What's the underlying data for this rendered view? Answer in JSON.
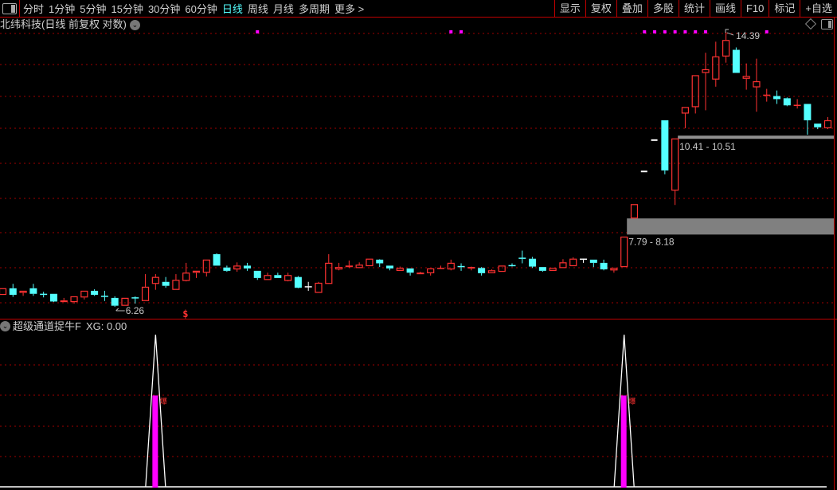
{
  "toolbar": {
    "periods": [
      {
        "label": "分时"
      },
      {
        "label": "1分钟"
      },
      {
        "label": "5分钟"
      },
      {
        "label": "15分钟"
      },
      {
        "label": "30分钟"
      },
      {
        "label": "60分钟"
      },
      {
        "label": "日线",
        "active": true
      },
      {
        "label": "周线"
      },
      {
        "label": "月线"
      },
      {
        "label": "多周期"
      },
      {
        "label": "更多 >"
      }
    ],
    "right_buttons": [
      "显示",
      "复权",
      "叠加",
      "多股",
      "统计",
      "画线",
      "F10",
      "标记",
      "+自选"
    ]
  },
  "main_panel": {
    "title": "北纬科技(日线 前复权 对数)"
  },
  "indicator_panel": {
    "name": "超级通道捉牛F",
    "readout": "XG: 0.00"
  },
  "colors": {
    "up": "#ff3232",
    "down": "#54ffff",
    "flat": "#ffffff",
    "signal": "#ff00ff",
    "grid": "#a00000",
    "zone": "#808080"
  },
  "chart_data": {
    "type": "candlestick",
    "scale": "log",
    "grid": true,
    "candles": [
      [
        6.49,
        6.62,
        6.49,
        6.62
      ],
      [
        6.62,
        6.71,
        6.45,
        6.49
      ],
      [
        6.53,
        6.57,
        6.47,
        6.57
      ],
      [
        6.62,
        6.71,
        6.47,
        6.51
      ],
      [
        6.5,
        6.55,
        6.44,
        6.49
      ],
      [
        6.51,
        6.51,
        6.35,
        6.36
      ],
      [
        6.35,
        6.43,
        6.35,
        6.38
      ],
      [
        6.35,
        6.46,
        6.32,
        6.46
      ],
      [
        6.44,
        6.57,
        6.4,
        6.57
      ],
      [
        6.57,
        6.6,
        6.47,
        6.49
      ],
      [
        6.46,
        6.57,
        6.37,
        6.45
      ],
      [
        6.43,
        6.46,
        6.26,
        6.28
      ],
      [
        6.28,
        6.43,
        6.28,
        6.43
      ],
      [
        6.43,
        6.46,
        6.32,
        6.42
      ],
      [
        6.37,
        6.91,
        6.37,
        6.65
      ],
      [
        6.71,
        6.91,
        6.59,
        6.85
      ],
      [
        6.75,
        6.85,
        6.63,
        6.67
      ],
      [
        6.59,
        6.91,
        6.59,
        6.79
      ],
      [
        6.77,
        7.15,
        6.76,
        6.94
      ],
      [
        6.94,
        6.98,
        6.83,
        6.98
      ],
      [
        6.94,
        7.22,
        6.86,
        7.22
      ],
      [
        7.34,
        7.36,
        7.09,
        7.09
      ],
      [
        7.05,
        7.09,
        6.96,
        6.98
      ],
      [
        7.01,
        7.16,
        6.96,
        7.09
      ],
      [
        7.09,
        7.15,
        6.98,
        7.03
      ],
      [
        6.98,
        6.98,
        6.79,
        6.83
      ],
      [
        6.79,
        6.94,
        6.79,
        6.89
      ],
      [
        6.89,
        6.94,
        6.83,
        6.83
      ],
      [
        6.77,
        6.94,
        6.76,
        6.89
      ],
      [
        6.85,
        6.87,
        6.62,
        6.63
      ],
      [
        6.65,
        6.75,
        6.57,
        6.65
      ],
      [
        6.53,
        6.75,
        6.53,
        6.73
      ],
      [
        6.71,
        7.34,
        6.71,
        7.15
      ],
      [
        7.01,
        7.15,
        6.99,
        7.06
      ],
      [
        7.06,
        7.2,
        7.04,
        7.09
      ],
      [
        7.04,
        7.16,
        7.04,
        7.11
      ],
      [
        7.08,
        7.24,
        7.08,
        7.24
      ],
      [
        7.22,
        7.23,
        7.06,
        7.14
      ],
      [
        7.09,
        7.09,
        6.99,
        7.03
      ],
      [
        6.98,
        7.07,
        6.98,
        7.04
      ],
      [
        7.03,
        7.03,
        6.88,
        6.94
      ],
      [
        6.91,
        6.96,
        6.91,
        6.94
      ],
      [
        6.93,
        7.03,
        6.88,
        7.03
      ],
      [
        7.02,
        7.09,
        7.02,
        7.03
      ],
      [
        7.01,
        7.22,
        6.99,
        7.15
      ],
      [
        7.07,
        7.14,
        6.98,
        7.06
      ],
      [
        7.03,
        7.07,
        6.99,
        7.06
      ],
      [
        7.04,
        7.06,
        6.88,
        6.93
      ],
      [
        6.93,
        7.01,
        6.93,
        6.99
      ],
      [
        6.96,
        7.09,
        6.96,
        7.09
      ],
      [
        7.09,
        7.14,
        7.06,
        7.07
      ],
      [
        7.25,
        7.42,
        7.14,
        7.24
      ],
      [
        7.24,
        7.28,
        7.04,
        7.07
      ],
      [
        7.06,
        7.06,
        6.96,
        6.98
      ],
      [
        6.98,
        7.04,
        6.98,
        7.04
      ],
      [
        7.04,
        7.23,
        7.04,
        7.16
      ],
      [
        7.08,
        7.27,
        7.08,
        7.24
      ],
      [
        7.23,
        7.24,
        7.15,
        7.23
      ],
      [
        7.22,
        7.22,
        7.06,
        7.15
      ],
      [
        7.15,
        7.22,
        6.99,
        7.01
      ],
      [
        6.99,
        7.04,
        6.94,
        7.04
      ],
      [
        7.06,
        7.74,
        7.06,
        7.74
      ],
      [
        8.18,
        8.54,
        8.18,
        8.54
      ],
      [
        9.43,
        9.43,
        9.43,
        9.43
      ],
      [
        10.37,
        10.37,
        10.37,
        10.37
      ],
      [
        11.01,
        11.01,
        9.35,
        9.46
      ],
      [
        8.9,
        10.42,
        8.52,
        10.42
      ],
      [
        11.24,
        11.46,
        10.75,
        11.46
      ],
      [
        11.46,
        12.62,
        11.24,
        12.62
      ],
      [
        12.71,
        13.51,
        11.35,
        12.85
      ],
      [
        12.46,
        13.97,
        12.19,
        13.36
      ],
      [
        13.36,
        14.39,
        13.11,
        14.04
      ],
      [
        13.63,
        13.73,
        12.71,
        12.71
      ],
      [
        12.49,
        13.08,
        12.08,
        12.59
      ],
      [
        12.17,
        13.27,
        11.3,
        12.39
      ],
      [
        11.85,
        12.11,
        11.65,
        11.88
      ],
      [
        11.85,
        12.05,
        11.57,
        11.74
      ],
      [
        11.77,
        11.8,
        11.49,
        11.52
      ],
      [
        11.51,
        11.74,
        11.41,
        11.52
      ],
      [
        11.57,
        11.57,
        10.54,
        11.01
      ],
      [
        10.9,
        10.9,
        10.72,
        10.78
      ],
      [
        10.75,
        11.12,
        10.72,
        11.01
      ]
    ],
    "candle_format": [
      "open",
      "high",
      "low",
      "close"
    ],
    "high_label": "14.39",
    "low_label": "6.26",
    "high_index": 71,
    "low_index": 11,
    "zones": [
      {
        "label": "7.79 - 8.18",
        "low": 7.79,
        "high": 8.18,
        "start_index": 61,
        "type": "band"
      },
      {
        "label": "10.41 - 10.51",
        "low": 10.41,
        "high": 10.51,
        "start_index": 66,
        "type": "line"
      }
    ],
    "signal_dot_indices": [
      25,
      44,
      45,
      63,
      64,
      65,
      66,
      67,
      68,
      69,
      75
    ],
    "marker": {
      "label": "$",
      "index": 18
    },
    "indicator": {
      "name": "XG",
      "spike_indices": [
        15,
        61
      ],
      "spike_value": 1,
      "bar_value": 0.6,
      "bar_tag": "爆"
    }
  }
}
